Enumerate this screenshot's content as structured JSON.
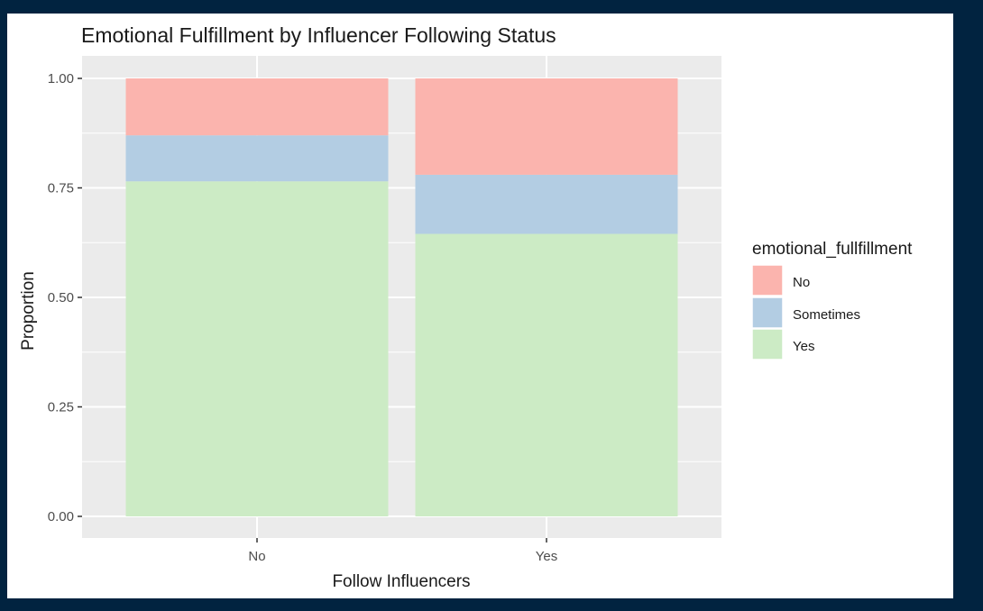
{
  "chart_data": {
    "type": "bar",
    "stacked": true,
    "title": "Emotional Fulfillment by Influencer Following Status",
    "xlabel": "Follow Influencers",
    "ylabel": "Proportion",
    "categories": [
      "No",
      "Yes"
    ],
    "ylim": [
      0,
      1
    ],
    "yticks": [
      0.0,
      0.25,
      0.5,
      0.75,
      1.0
    ],
    "ytick_labels": [
      "0.00",
      "0.25",
      "0.50",
      "0.75",
      "1.00"
    ],
    "series": [
      {
        "name": "Yes",
        "color": "#CCEBC5",
        "values": [
          0.765,
          0.645
        ]
      },
      {
        "name": "Sometimes",
        "color": "#B3CDE3",
        "values": [
          0.105,
          0.135
        ]
      },
      {
        "name": "No",
        "color": "#FBB4AE",
        "values": [
          0.13,
          0.22
        ]
      }
    ],
    "legend": {
      "title": "emotional_fullfillment",
      "position": "right",
      "items": [
        "No",
        "Sometimes",
        "Yes"
      ]
    },
    "grid": true,
    "panel_background": "#EBEBEB"
  }
}
